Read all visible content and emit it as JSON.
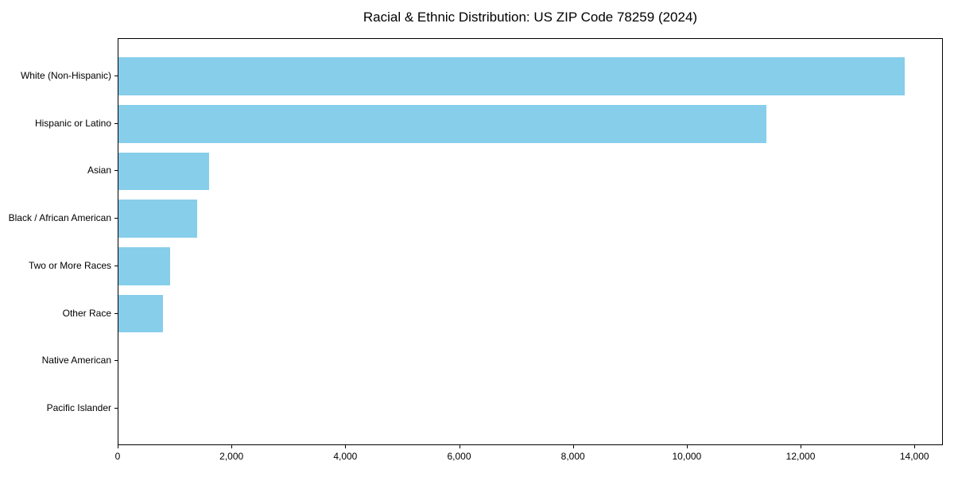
{
  "title": "Racial & Ethnic Distribution: US ZIP Code 78259 (2024)",
  "colors": {
    "bar": "#87CEEB",
    "spine": "#000000",
    "text": "#000000",
    "background": "#ffffff"
  },
  "chart_data": {
    "type": "bar",
    "orientation": "horizontal",
    "title": "Racial & Ethnic Distribution: US ZIP Code 78259 (2024)",
    "categories": [
      "White (Non-Hispanic)",
      "Hispanic or Latino",
      "Asian",
      "Black / African American",
      "Two or More Races",
      "Other Race",
      "Native American",
      "Pacific Islander"
    ],
    "values": [
      13820,
      11390,
      1590,
      1385,
      910,
      780,
      0,
      0
    ],
    "xlabel": "",
    "ylabel": "",
    "xlim": [
      0,
      14500
    ],
    "xticks": [
      0,
      2000,
      4000,
      6000,
      8000,
      10000,
      12000,
      14000
    ],
    "xtick_labels": [
      "0",
      "2,000",
      "4,000",
      "6,000",
      "8,000",
      "10,000",
      "12,000",
      "14,000"
    ],
    "grid": false,
    "legend": "none",
    "bar_color": "#87CEEB"
  }
}
